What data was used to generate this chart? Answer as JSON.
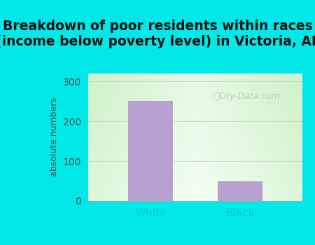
{
  "title": "Breakdown of poor residents within races\n(income below poverty level) in Victoria, AL",
  "categories": [
    "White",
    "Black"
  ],
  "values": [
    252,
    50
  ],
  "bar_color": "#b8a0d0",
  "ylabel": "absolute numbers",
  "ylim": [
    0,
    320
  ],
  "yticks": [
    0,
    100,
    200,
    300
  ],
  "outer_bg": "#00e8e8",
  "plot_bg_left": "#c8eec0",
  "plot_bg_center": "#f5fff5",
  "grid_color": "#c8dcc0",
  "title_fontsize": 13.5,
  "bar_width": 0.5,
  "watermark": "City-Data.com",
  "watermark_color": "#b0c4b8",
  "ytick_color": "#505050",
  "xtick_color": "#00cccc",
  "ylabel_color": "#505050"
}
